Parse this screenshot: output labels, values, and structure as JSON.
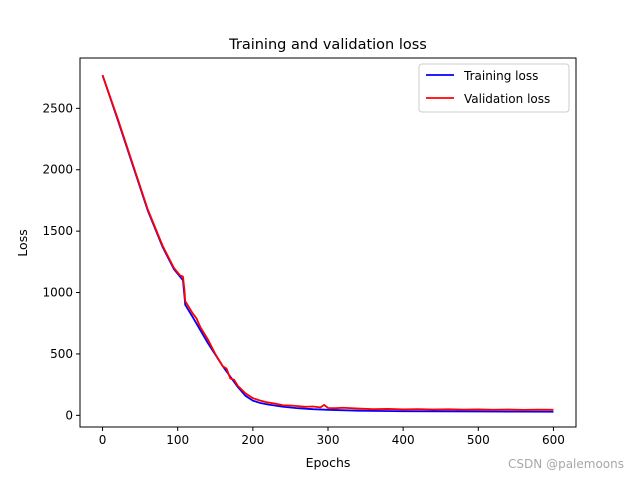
{
  "chart_data": {
    "type": "line",
    "title": "Training and validation loss",
    "xlabel": "Epochs",
    "ylabel": "Loss",
    "xlim": [
      -30,
      630
    ],
    "ylim": [
      -95,
      2910
    ],
    "xticks": [
      0,
      100,
      200,
      300,
      400,
      500,
      600
    ],
    "yticks": [
      0,
      500,
      1000,
      1500,
      2000,
      2500
    ],
    "grid": false,
    "legend_position": "top-right",
    "series": [
      {
        "name": "Training loss",
        "color": "#0000ff",
        "x": [
          0,
          20,
          40,
          60,
          80,
          95,
          103,
          107,
          109,
          110,
          120,
          140,
          160,
          180,
          190,
          200,
          210,
          220,
          240,
          260,
          280,
          300,
          340,
          400,
          450,
          500,
          550,
          600
        ],
        "values": [
          2770,
          2410,
          2040,
          1670,
          1370,
          1190,
          1130,
          1100,
          970,
          900,
          800,
          590,
          400,
          230,
          160,
          120,
          100,
          88,
          70,
          58,
          50,
          45,
          38,
          33,
          32,
          31,
          30,
          29
        ]
      },
      {
        "name": "Validation loss",
        "color": "#ff0000",
        "x": [
          0,
          20,
          40,
          60,
          80,
          95,
          103,
          107,
          109,
          110,
          120,
          125,
          130,
          140,
          150,
          160,
          165,
          170,
          175,
          180,
          185,
          190,
          200,
          205,
          210,
          220,
          230,
          240,
          250,
          260,
          270,
          280,
          290,
          295,
          300,
          310,
          320,
          340,
          360,
          380,
          400,
          420,
          440,
          460,
          480,
          500,
          520,
          540,
          560,
          580,
          600
        ],
        "values": [
          2770,
          2420,
          2050,
          1680,
          1380,
          1200,
          1140,
          1130,
          1020,
          930,
          830,
          790,
          720,
          620,
          500,
          400,
          380,
          300,
          290,
          240,
          210,
          180,
          140,
          130,
          120,
          105,
          95,
          82,
          80,
          75,
          70,
          72,
          65,
          85,
          60,
          58,
          62,
          55,
          50,
          52,
          48,
          50,
          47,
          49,
          46,
          48,
          45,
          47,
          44,
          46,
          45
        ]
      }
    ]
  },
  "watermark": "CSDN @palemoons"
}
